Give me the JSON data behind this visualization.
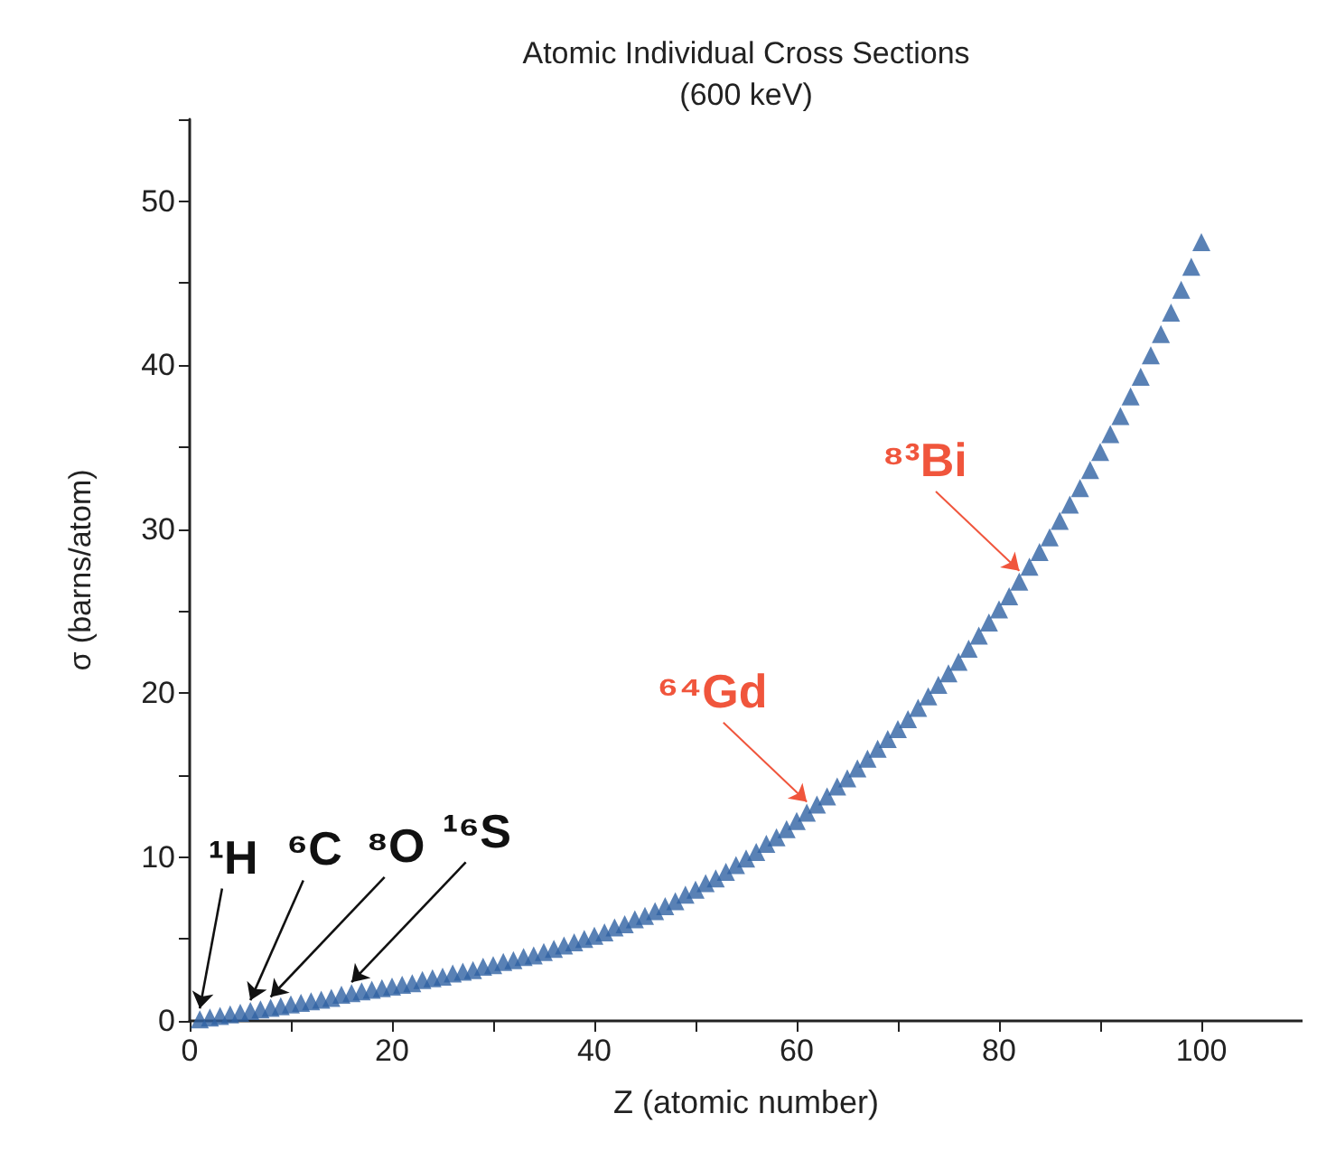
{
  "chart_data": {
    "type": "scatter",
    "title": "Atomic Individual Cross Sections",
    "subtitle": "(600 keV)",
    "xlabel": "Z (atomic number)",
    "ylabel": "σ (barns/atom)",
    "x": [
      1,
      2,
      3,
      4,
      5,
      6,
      7,
      8,
      9,
      10,
      11,
      12,
      13,
      14,
      15,
      16,
      17,
      18,
      19,
      20,
      21,
      22,
      23,
      24,
      25,
      26,
      27,
      28,
      29,
      30,
      31,
      32,
      33,
      34,
      35,
      36,
      37,
      38,
      39,
      40,
      41,
      42,
      43,
      44,
      45,
      46,
      47,
      48,
      49,
      50,
      51,
      52,
      53,
      54,
      55,
      56,
      57,
      58,
      59,
      60,
      61,
      62,
      63,
      64,
      65,
      66,
      67,
      68,
      69,
      70,
      71,
      72,
      73,
      74,
      75,
      76,
      77,
      78,
      79,
      80,
      81,
      82,
      83,
      84,
      85,
      86,
      87,
      88,
      89,
      90,
      91,
      92,
      93,
      94,
      95,
      96,
      97,
      98,
      99,
      100
    ],
    "series": [
      {
        "color": "#2f62a3",
        "values": [
          0.1,
          0.2,
          0.3,
          0.4,
          0.5,
          0.6,
          0.7,
          0.8,
          0.9,
          1.0,
          1.1,
          1.2,
          1.3,
          1.4,
          1.6,
          1.7,
          1.8,
          1.9,
          2.0,
          2.1,
          2.2,
          2.3,
          2.5,
          2.6,
          2.7,
          2.9,
          3.0,
          3.1,
          3.3,
          3.4,
          3.6,
          3.7,
          3.9,
          4.0,
          4.2,
          4.4,
          4.6,
          4.8,
          5.0,
          5.2,
          5.4,
          5.7,
          5.9,
          6.2,
          6.4,
          6.7,
          7.0,
          7.3,
          7.7,
          8.0,
          8.4,
          8.7,
          9.1,
          9.5,
          9.9,
          10.3,
          10.8,
          11.2,
          11.7,
          12.2,
          12.7,
          13.2,
          13.7,
          14.3,
          14.8,
          15.4,
          16.0,
          16.6,
          17.2,
          17.8,
          18.4,
          19.1,
          19.8,
          20.5,
          21.2,
          21.9,
          22.7,
          23.5,
          24.3,
          25.1,
          25.9,
          26.8,
          27.7,
          28.6,
          29.5,
          30.5,
          31.5,
          32.5,
          33.6,
          34.7,
          35.8,
          36.9,
          38.1,
          39.3,
          40.6,
          41.9,
          43.2,
          44.6,
          46.0,
          47.5
        ]
      }
    ],
    "xlim": [
      0,
      110
    ],
    "xticks": [
      0,
      {
        "value": 10,
        "label": null
      },
      20,
      {
        "value": 30,
        "label": null
      },
      40,
      {
        "value": 50,
        "label": null
      },
      60,
      {
        "value": 70,
        "label": null
      },
      80,
      {
        "value": 90,
        "label": null
      },
      100,
      {
        "value": 110,
        "label": null
      }
    ],
    "ylim": [
      0,
      55
    ],
    "yticks": [
      0,
      {
        "value": 5,
        "label": null
      },
      10,
      {
        "value": 15,
        "label": null
      },
      20,
      {
        "value": 25,
        "label": null
      },
      30,
      {
        "value": 35,
        "label": null
      },
      40,
      {
        "value": 45,
        "label": null
      },
      50,
      {
        "value": 55,
        "label": null
      }
    ],
    "grid": false,
    "marker": "triangle",
    "annotations": [
      {
        "text": "¹H",
        "x": 1,
        "y": 0.1
      },
      {
        "text": "⁶C",
        "x": 6,
        "y": 0.6
      },
      {
        "text": "⁸O",
        "x": 8,
        "y": 0.8
      },
      {
        "text": "¹⁶S",
        "x": 16,
        "y": 1.7
      },
      {
        "text": "⁶⁴Gd",
        "x": 61,
        "y": 12.7
      },
      {
        "text": "⁸³Bi",
        "x": 82,
        "y": 26.8
      }
    ]
  }
}
